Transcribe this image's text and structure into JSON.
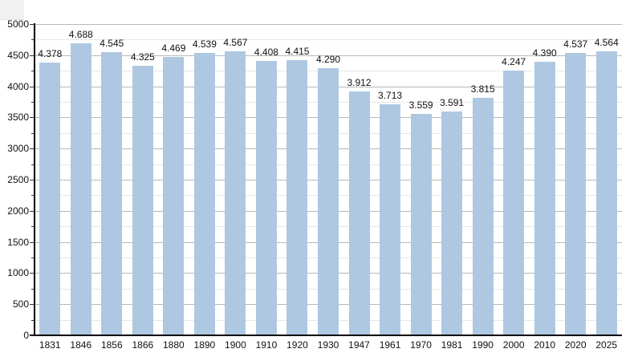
{
  "chart_data": {
    "type": "bar",
    "title": "",
    "xlabel": "",
    "ylabel": "",
    "categories": [
      "1831",
      "1846",
      "1856",
      "1866",
      "1880",
      "1890",
      "1900",
      "1910",
      "1920",
      "1930",
      "1947",
      "1961",
      "1970",
      "1981",
      "1990",
      "2000",
      "2010",
      "2020",
      "2025"
    ],
    "values": [
      4378,
      4688,
      4545,
      4325,
      4469,
      4539,
      4567,
      4408,
      4415,
      4290,
      3912,
      3713,
      3559,
      3591,
      3815,
      4247,
      4390,
      4537,
      4564
    ],
    "value_labels": [
      "4.378",
      "4.688",
      "4.545",
      "4.325",
      "4.469",
      "4.539",
      "4.567",
      "4.408",
      "4.415",
      "4.290",
      "3.912",
      "3.713",
      "3.559",
      "3.591",
      "3.815",
      "4.247",
      "4.390",
      "4.537",
      "4.564"
    ],
    "ylim": [
      0,
      5000
    ],
    "y_major_step": 500,
    "y_minor_step": 250,
    "y_tick_labels": [
      "0",
      "500",
      "1000",
      "1500",
      "2000",
      "2500",
      "3000",
      "3500",
      "4000",
      "4500",
      "5000"
    ],
    "grid": "on",
    "legend_position": "none",
    "bar_color": "#aec8e2",
    "major_grid_color": "#b8b8b8",
    "minor_grid_color": "#e7e7e7",
    "axis_color": "#000000",
    "text_color": "#111111"
  }
}
